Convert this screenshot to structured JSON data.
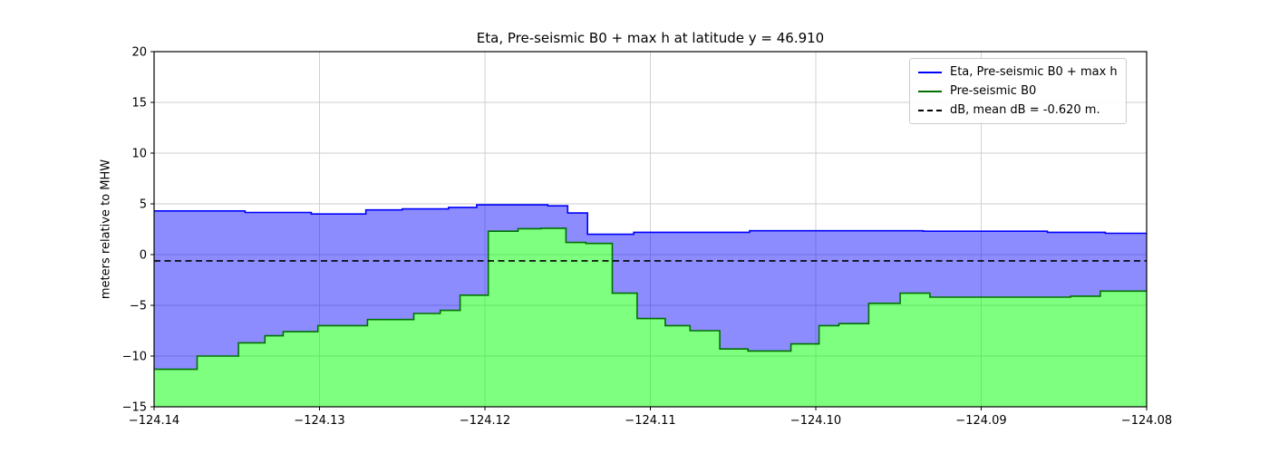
{
  "chart_data": {
    "type": "area",
    "title": "Eta, Pre-seismic B0 + max h at latitude y = 46.910",
    "xlabel": "",
    "ylabel": "meters relative to MHW",
    "xlim": [
      -124.14,
      -124.08
    ],
    "ylim": [
      -15,
      20
    ],
    "xticks": [
      -124.14,
      -124.13,
      -124.12,
      -124.11,
      -124.1,
      -124.09,
      -124.08
    ],
    "xtick_labels": [
      "−124.14",
      "−124.13",
      "−124.12",
      "−124.11",
      "−124.10",
      "−124.09",
      "−124.08"
    ],
    "yticks": [
      20,
      15,
      10,
      5,
      0,
      -5,
      -10,
      -15
    ],
    "ytick_labels": [
      "20",
      "15",
      "10",
      "5",
      "0",
      "−5",
      "−10",
      "−15"
    ],
    "grid": true,
    "legend_position": "upper right",
    "colors": {
      "grid": "#cccccc",
      "axes": "#000000",
      "background": "#ffffff"
    },
    "series": [
      {
        "name": "Eta, Pre-seismic B0 + max h",
        "style": "step",
        "line_color": "#0000ff",
        "fill_color": "rgba(0,0,255,0.45)",
        "fill_between": "Pre-seismic B0",
        "breakpoints": [
          [
            -124.14,
            4.3
          ],
          [
            -124.1345,
            4.15
          ],
          [
            -124.1305,
            4.0
          ],
          [
            -124.1272,
            4.4
          ],
          [
            -124.125,
            4.5
          ],
          [
            -124.1222,
            4.65
          ],
          [
            -124.1205,
            4.9
          ],
          [
            -124.1162,
            4.8
          ],
          [
            -124.115,
            4.1
          ],
          [
            -124.1138,
            2.0
          ],
          [
            -124.111,
            2.2
          ],
          [
            -124.104,
            2.35
          ],
          [
            -124.0935,
            2.3
          ],
          [
            -124.086,
            2.2
          ],
          [
            -124.0825,
            2.1
          ]
        ]
      },
      {
        "name": "Pre-seismic B0",
        "style": "step",
        "line_color": "#007000",
        "fill_color": "rgba(0,255,0,0.5)",
        "fill_between": "bottom",
        "breakpoints": [
          [
            -124.14,
            -11.3
          ],
          [
            -124.1374,
            -10.0
          ],
          [
            -124.1349,
            -8.7
          ],
          [
            -124.1333,
            -8.0
          ],
          [
            -124.1322,
            -7.6
          ],
          [
            -124.1301,
            -7.0
          ],
          [
            -124.1271,
            -6.4
          ],
          [
            -124.1243,
            -5.8
          ],
          [
            -124.1227,
            -5.5
          ],
          [
            -124.1215,
            -4.0
          ],
          [
            -124.1198,
            2.3
          ],
          [
            -124.118,
            2.55
          ],
          [
            -124.1166,
            2.6
          ],
          [
            -124.1151,
            1.2
          ],
          [
            -124.1139,
            1.1
          ],
          [
            -124.1123,
            -3.8
          ],
          [
            -124.1108,
            -6.3
          ],
          [
            -124.1091,
            -7.0
          ],
          [
            -124.1076,
            -7.5
          ],
          [
            -124.1058,
            -9.3
          ],
          [
            -124.1041,
            -9.5
          ],
          [
            -124.1015,
            -8.8
          ],
          [
            -124.0998,
            -7.0
          ],
          [
            -124.0986,
            -6.8
          ],
          [
            -124.0968,
            -4.8
          ],
          [
            -124.0949,
            -3.8
          ],
          [
            -124.0931,
            -4.2
          ],
          [
            -124.0846,
            -4.1
          ],
          [
            -124.0828,
            -3.6
          ]
        ]
      },
      {
        "name": "dB, mean dB = -0.620 m.",
        "style": "hline-dashed",
        "line_color": "#000000",
        "value": -0.62
      }
    ]
  }
}
